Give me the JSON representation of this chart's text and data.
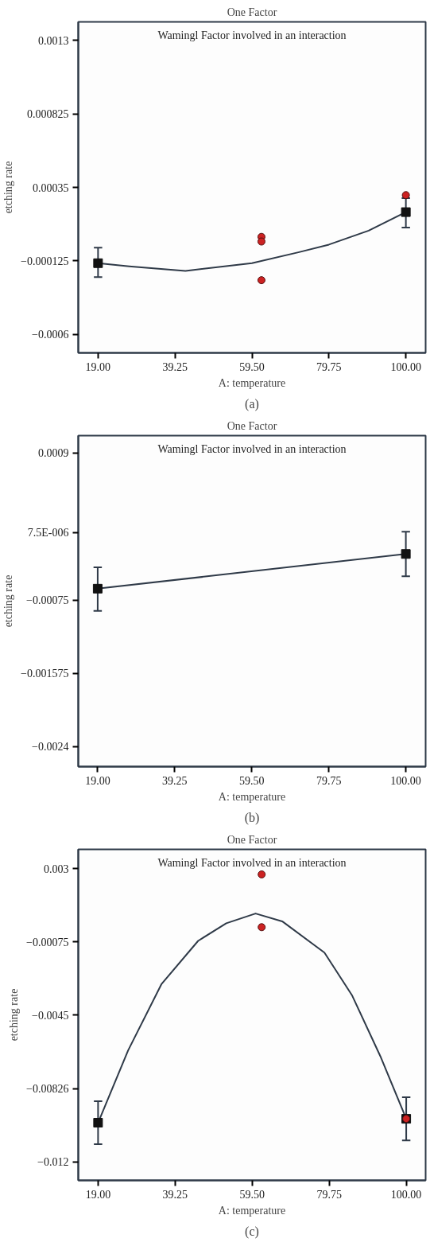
{
  "chart_data": [
    {
      "type": "scatter",
      "title": "One Factor",
      "xlabel": "A: temperature",
      "ylabel": "etching rate",
      "annotations": [
        "Wamingl Factor involved in an interaction",
        "(a)"
      ],
      "xlim": [
        13.8,
        105.2
      ],
      "ylim": [
        -0.00072,
        0.00142
      ],
      "xticks": [
        {
          "value": 19,
          "label": "19.00"
        },
        {
          "value": 39.25,
          "label": "39.25"
        },
        {
          "value": 59.5,
          "label": "59.50"
        },
        {
          "value": 79.75,
          "label": "79.75"
        },
        {
          "value": 100,
          "label": "100.00"
        }
      ],
      "yticks": [
        {
          "value": -0.0006,
          "label": "−0.0006"
        },
        {
          "value": -0.000125,
          "label": "−0.000125"
        },
        {
          "value": 0.00035,
          "label": "0.00035"
        },
        {
          "value": 0.000825,
          "label": "0.000825"
        },
        {
          "value": 0.0013,
          "label": "0.0013"
        }
      ],
      "grid": false,
      "series": [
        {
          "type": "line",
          "color": "#2f3a48",
          "x": [
            19,
            27.2,
            42,
            59.5,
            71.7,
            79.75,
            90.2,
            100
          ],
          "values": [
            -0.00014,
            -0.00016,
            -0.00019,
            -0.00014,
            -7e-05,
            -2e-05,
            7e-05,
            0.00019
          ]
        },
        {
          "marker": "square",
          "color": "#111111",
          "x": [
            19,
            100
          ],
          "values": [
            -0.00014,
            0.00019
          ],
          "errors": [
            [
              -0.00023,
              -4e-05
            ],
            [
              9e-05,
              0.00028
            ]
          ]
        },
        {
          "marker": "circle",
          "color": "#cc2222",
          "x": [
            62,
            62,
            62,
            100
          ],
          "values": [
            3e-05,
            0.0,
            -0.00025,
            0.0003
          ]
        }
      ]
    },
    {
      "type": "scatter",
      "title": "One Factor",
      "xlabel": "A: temperature",
      "ylabel": "etching rate",
      "annotations": [
        "Wamingl Factor involved in an interaction",
        "(b)"
      ],
      "xlim": [
        13.9,
        105.2
      ],
      "ylim": [
        -0.00262,
        0.0011
      ],
      "xticks": [
        {
          "value": 19,
          "label": "19.00"
        },
        {
          "value": 39.25,
          "label": "39.25"
        },
        {
          "value": 59.5,
          "label": "59.50"
        },
        {
          "value": 79.75,
          "label": "79.75"
        },
        {
          "value": 100,
          "label": "100.00"
        }
      ],
      "yticks": [
        {
          "value": -0.0024,
          "label": "−0.0024"
        },
        {
          "value": -0.001575,
          "label": "−0.001575"
        },
        {
          "value": -0.00075,
          "label": "−0.00075"
        },
        {
          "value": 7.5e-06,
          "label": "7.5E-006"
        },
        {
          "value": 0.0009,
          "label": "0.0009"
        }
      ],
      "grid": false,
      "series": [
        {
          "type": "line",
          "color": "#2f3a48",
          "x": [
            19,
            100
          ],
          "values": [
            -0.00062,
            -0.00023
          ]
        },
        {
          "marker": "square",
          "color": "#111111",
          "x": [
            19,
            100
          ],
          "values": [
            -0.00062,
            -0.00023
          ],
          "errors": [
            [
              -0.00087,
              -0.00038
            ],
            [
              -0.00048,
              2e-05
            ]
          ]
        }
      ]
    },
    {
      "type": "scatter",
      "title": "One Factor",
      "xlabel": "A: temperature",
      "ylabel": "etching rate",
      "annotations": [
        "Wamingl Factor involved in an interaction",
        "(c)"
      ],
      "xlim": [
        13.8,
        105.1
      ],
      "ylim": [
        -0.01295,
        0.00398
      ],
      "xticks": [
        {
          "value": 19,
          "label": "19.00"
        },
        {
          "value": 39.25,
          "label": "39.25"
        },
        {
          "value": 59.5,
          "label": "59.50"
        },
        {
          "value": 79.75,
          "label": "79.75"
        },
        {
          "value": 100,
          "label": "100.00"
        }
      ],
      "yticks": [
        {
          "value": -0.012,
          "label": "−0.012"
        },
        {
          "value": -0.00826,
          "label": "−0.00826"
        },
        {
          "value": -0.0045,
          "label": "−0.0045"
        },
        {
          "value": -0.00075,
          "label": "−0.00075"
        },
        {
          "value": 0.003,
          "label": "0.003"
        }
      ],
      "grid": false,
      "series": [
        {
          "type": "line",
          "color": "#2f3a48",
          "x": [
            19,
            26.9,
            35.7,
            45.3,
            52.7,
            60.4,
            67.4,
            78.5,
            85.8,
            93.2,
            100
          ],
          "values": [
            -0.01,
            -0.0063,
            -0.0029,
            -0.0007,
            0.0002,
            0.0007,
            0.0003,
            -0.0013,
            -0.0035,
            -0.0066,
            -0.0098
          ]
        },
        {
          "marker": "square",
          "color": "#111111",
          "x": [
            19,
            100
          ],
          "values": [
            -0.01,
            -0.0098
          ],
          "errors": [
            [
              -0.0111,
              -0.0089
            ],
            [
              -0.0109,
              -0.0087
            ]
          ]
        },
        {
          "marker": "circle",
          "color": "#cc2222",
          "x": [
            62,
            62,
            100
          ],
          "values": [
            0.0027,
            0.0,
            -0.0098
          ]
        }
      ]
    }
  ]
}
